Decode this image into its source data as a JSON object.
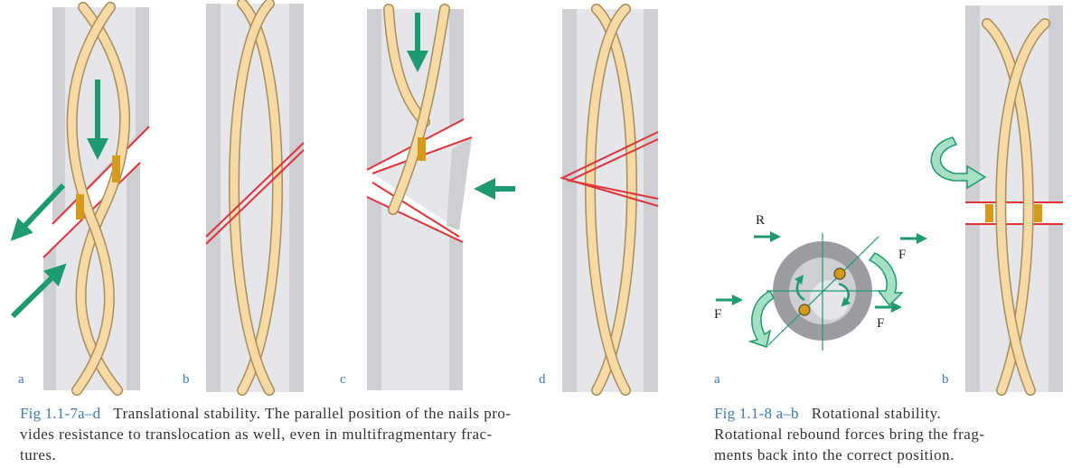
{
  "figure_7": {
    "panel_labels": [
      "a",
      "b",
      "c",
      "d"
    ],
    "caption": {
      "number": "Fig 1.1-7a–d",
      "lines": [
        "Translational stability. The parallel position of the nails pro-",
        "vides resistance to translocation as well, even in multifragmentary frac-",
        "tures."
      ]
    }
  },
  "figure_8": {
    "panel_labels": [
      "a",
      "b"
    ],
    "force_labels": {
      "rebound": "R",
      "force": "F"
    },
    "caption": {
      "number": "Fig 1.1-8 a–b",
      "lines": [
        "Rotational stability.",
        "Rotational rebound forces bring the frag-",
        "ments back into the correct position."
      ]
    }
  },
  "colors": {
    "bone_outer": "#cdcfd3",
    "bone_inner": "#e5e6ea",
    "cortex_dark": "#9a9ca2",
    "nail_fill": "#f6d9a4",
    "nail_stroke": "#a88c5a",
    "fracture_line": "#e1323a",
    "arrow_green": "#1d9a6e",
    "arrow_light": "#a6e0c4",
    "nail_contact": "#d59a1a"
  }
}
